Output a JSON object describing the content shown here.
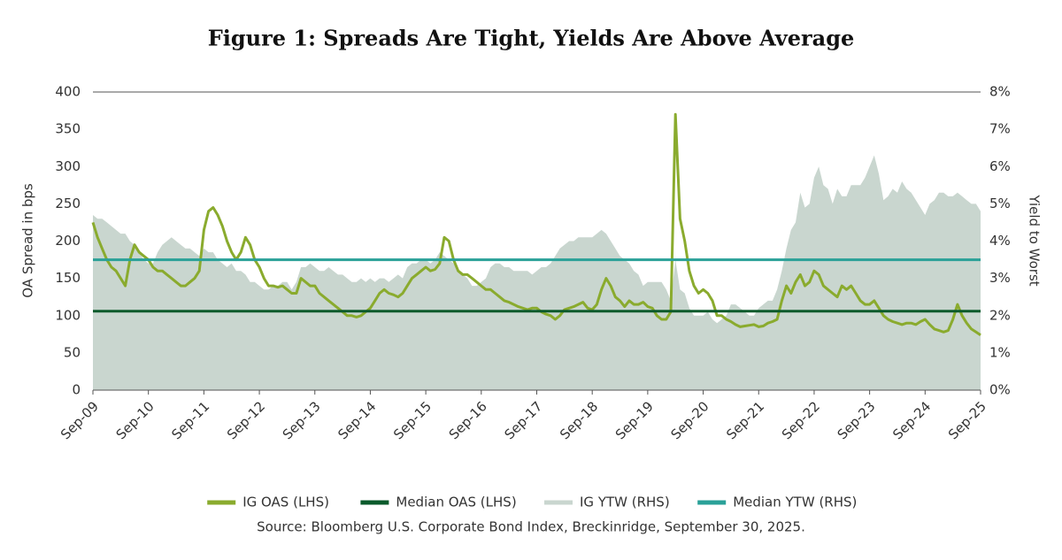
{
  "chart_data": {
    "type": "line",
    "title": "Figure 1: Spreads Are Tight, Yields Are Above Average",
    "y_label": "OA Spread in bps",
    "y2_label": "Yield to Worst",
    "source": "Source: Bloomberg U.S. Corporate Bond Index, Breckinridge, September 30, 2025.",
    "x": [
      "Sep-09",
      "Oct-09",
      "Nov-09",
      "Dec-09",
      "Jan-10",
      "Feb-10",
      "Mar-10",
      "Apr-10",
      "May-10",
      "Jun-10",
      "Jul-10",
      "Aug-10",
      "Sep-10",
      "Oct-10",
      "Nov-10",
      "Dec-10",
      "Jan-11",
      "Feb-11",
      "Mar-11",
      "Apr-11",
      "May-11",
      "Jun-11",
      "Jul-11",
      "Aug-11",
      "Sep-11",
      "Oct-11",
      "Nov-11",
      "Dec-11",
      "Jan-12",
      "Feb-12",
      "Mar-12",
      "Apr-12",
      "May-12",
      "Jun-12",
      "Jul-12",
      "Aug-12",
      "Sep-12",
      "Oct-12",
      "Nov-12",
      "Dec-12",
      "Jan-13",
      "Feb-13",
      "Mar-13",
      "Apr-13",
      "May-13",
      "Jun-13",
      "Jul-13",
      "Aug-13",
      "Sep-13",
      "Oct-13",
      "Nov-13",
      "Dec-13",
      "Jan-14",
      "Feb-14",
      "Mar-14",
      "Apr-14",
      "May-14",
      "Jun-14",
      "Jul-14",
      "Aug-14",
      "Sep-14",
      "Oct-14",
      "Nov-14",
      "Dec-14",
      "Jan-15",
      "Feb-15",
      "Mar-15",
      "Apr-15",
      "May-15",
      "Jun-15",
      "Jul-15",
      "Aug-15",
      "Sep-15",
      "Oct-15",
      "Nov-15",
      "Dec-15",
      "Jan-16",
      "Feb-16",
      "Mar-16",
      "Apr-16",
      "May-16",
      "Jun-16",
      "Jul-16",
      "Aug-16",
      "Sep-16",
      "Oct-16",
      "Nov-16",
      "Dec-16",
      "Jan-17",
      "Feb-17",
      "Mar-17",
      "Apr-17",
      "May-17",
      "Jun-17",
      "Jul-17",
      "Aug-17",
      "Sep-17",
      "Oct-17",
      "Nov-17",
      "Dec-17",
      "Jan-18",
      "Feb-18",
      "Mar-18",
      "Apr-18",
      "May-18",
      "Jun-18",
      "Jul-18",
      "Aug-18",
      "Sep-18",
      "Oct-18",
      "Nov-18",
      "Dec-18",
      "Jan-19",
      "Feb-19",
      "Mar-19",
      "Apr-19",
      "May-19",
      "Jun-19",
      "Jul-19",
      "Aug-19",
      "Sep-19",
      "Oct-19",
      "Nov-19",
      "Dec-19",
      "Jan-20",
      "Feb-20",
      "Mar-20",
      "Apr-20",
      "May-20",
      "Jun-20",
      "Jul-20",
      "Aug-20",
      "Sep-20",
      "Oct-20",
      "Nov-20",
      "Dec-20",
      "Jan-21",
      "Feb-21",
      "Mar-21",
      "Apr-21",
      "May-21",
      "Jun-21",
      "Jul-21",
      "Aug-21",
      "Sep-21",
      "Oct-21",
      "Nov-21",
      "Dec-21",
      "Jan-22",
      "Feb-22",
      "Mar-22",
      "Apr-22",
      "May-22",
      "Jun-22",
      "Jul-22",
      "Aug-22",
      "Sep-22",
      "Oct-22",
      "Nov-22",
      "Dec-22",
      "Jan-23",
      "Feb-23",
      "Mar-23",
      "Apr-23",
      "May-23",
      "Jun-23",
      "Jul-23",
      "Aug-23",
      "Sep-23",
      "Oct-23",
      "Nov-23",
      "Dec-23",
      "Jan-24",
      "Feb-24",
      "Mar-24",
      "Apr-24",
      "May-24",
      "Jun-24",
      "Jul-24",
      "Aug-24",
      "Sep-24",
      "Oct-24",
      "Nov-24",
      "Dec-24",
      "Jan-25",
      "Feb-25",
      "Mar-25",
      "Apr-25",
      "May-25",
      "Jun-25",
      "Jul-25",
      "Aug-25",
      "Sep-25"
    ],
    "xticks": [
      "Sep-09",
      "Sep-10",
      "Sep-11",
      "Sep-12",
      "Sep-13",
      "Sep-14",
      "Sep-15",
      "Sep-16",
      "Sep-17",
      "Sep-18",
      "Sep-19",
      "Sep-20",
      "Sep-21",
      "Sep-22",
      "Sep-23",
      "Sep-24",
      "Sep-25"
    ],
    "ylim": [
      0,
      400
    ],
    "yticks": [
      0,
      50,
      100,
      150,
      200,
      250,
      300,
      350,
      400
    ],
    "y2lim": [
      0,
      8
    ],
    "y2ticks": [
      {
        "value": 0,
        "label": "0%"
      },
      {
        "value": 1,
        "label": "1%"
      },
      {
        "value": 2,
        "label": "2%"
      },
      {
        "value": 3,
        "label": "3%"
      },
      {
        "value": 4,
        "label": "4%"
      },
      {
        "value": 5,
        "label": "5%"
      },
      {
        "value": 6,
        "label": "6%"
      },
      {
        "value": 7,
        "label": "7%"
      },
      {
        "value": 8,
        "label": "8%"
      }
    ],
    "series": [
      {
        "name": "IG OAS (LHS)",
        "kind": "line",
        "axis": "y",
        "color": "#8aab2e",
        "values": [
          225,
          205,
          190,
          175,
          165,
          160,
          150,
          140,
          175,
          195,
          185,
          180,
          175,
          165,
          160,
          160,
          155,
          150,
          145,
          140,
          140,
          145,
          150,
          160,
          215,
          240,
          245,
          235,
          220,
          200,
          185,
          175,
          185,
          205,
          195,
          175,
          165,
          150,
          140,
          140,
          138,
          140,
          135,
          130,
          130,
          150,
          145,
          140,
          140,
          130,
          125,
          120,
          115,
          110,
          105,
          100,
          100,
          98,
          100,
          105,
          110,
          120,
          130,
          135,
          130,
          128,
          125,
          130,
          140,
          150,
          155,
          160,
          165,
          160,
          162,
          170,
          205,
          200,
          175,
          160,
          155,
          155,
          150,
          145,
          140,
          135,
          135,
          130,
          125,
          120,
          118,
          115,
          112,
          110,
          108,
          110,
          110,
          105,
          102,
          100,
          95,
          100,
          108,
          110,
          112,
          115,
          118,
          110,
          108,
          115,
          135,
          150,
          140,
          125,
          120,
          112,
          120,
          115,
          115,
          118,
          112,
          110,
          100,
          95,
          95,
          105,
          370,
          230,
          200,
          160,
          140,
          130,
          135,
          130,
          120,
          100,
          100,
          95,
          92,
          88,
          85,
          86,
          87,
          88,
          85,
          86,
          90,
          92,
          95,
          120,
          140,
          130,
          145,
          155,
          140,
          145,
          160,
          155,
          140,
          135,
          130,
          125,
          140,
          135,
          140,
          130,
          120,
          115,
          115,
          120,
          110,
          100,
          95,
          92,
          90,
          88,
          90,
          90,
          88,
          92,
          95,
          88,
          82,
          80,
          78,
          80,
          95,
          115,
          100,
          90,
          82,
          78,
          74
        ]
      },
      {
        "name": "Median OAS (LHS)",
        "kind": "hline",
        "axis": "y",
        "color": "#0b5a2b",
        "value": 106
      },
      {
        "name": "IG YTW (RHS)",
        "kind": "area",
        "axis": "y2",
        "color": "#c9d6cf",
        "values": [
          4.7,
          4.6,
          4.6,
          4.5,
          4.4,
          4.3,
          4.2,
          4.2,
          4.0,
          3.9,
          3.7,
          3.5,
          3.4,
          3.4,
          3.7,
          3.9,
          4.0,
          4.1,
          4.0,
          3.9,
          3.8,
          3.8,
          3.7,
          3.6,
          3.8,
          3.7,
          3.7,
          3.5,
          3.4,
          3.3,
          3.4,
          3.2,
          3.2,
          3.1,
          2.9,
          2.9,
          2.8,
          2.7,
          2.7,
          2.8,
          2.8,
          2.9,
          2.9,
          2.7,
          2.9,
          3.3,
          3.3,
          3.4,
          3.3,
          3.2,
          3.2,
          3.3,
          3.2,
          3.1,
          3.1,
          3.0,
          2.9,
          2.9,
          3.0,
          2.9,
          3.0,
          2.9,
          3.0,
          3.0,
          2.9,
          3.0,
          3.1,
          3.0,
          3.3,
          3.4,
          3.4,
          3.5,
          3.5,
          3.4,
          3.5,
          3.7,
          3.6,
          3.5,
          3.4,
          3.2,
          3.1,
          3.0,
          2.8,
          2.8,
          2.9,
          3.0,
          3.3,
          3.4,
          3.4,
          3.3,
          3.3,
          3.2,
          3.2,
          3.2,
          3.2,
          3.1,
          3.2,
          3.3,
          3.3,
          3.4,
          3.6,
          3.8,
          3.9,
          4.0,
          4.0,
          4.1,
          4.1,
          4.1,
          4.1,
          4.2,
          4.3,
          4.2,
          4.0,
          3.8,
          3.6,
          3.5,
          3.4,
          3.2,
          3.1,
          2.8,
          2.9,
          2.9,
          2.9,
          2.9,
          2.7,
          2.4,
          3.5,
          2.7,
          2.6,
          2.2,
          2.0,
          2.0,
          2.0,
          2.1,
          1.9,
          1.8,
          1.9,
          2.0,
          2.3,
          2.3,
          2.2,
          2.1,
          2.0,
          2.0,
          2.2,
          2.3,
          2.4,
          2.4,
          2.7,
          3.2,
          3.8,
          4.3,
          4.5,
          5.3,
          4.9,
          5.0,
          5.7,
          6.0,
          5.5,
          5.4,
          5.0,
          5.4,
          5.2,
          5.2,
          5.5,
          5.5,
          5.5,
          5.7,
          6.0,
          6.3,
          5.8,
          5.1,
          5.2,
          5.4,
          5.3,
          5.6,
          5.4,
          5.3,
          5.1,
          4.9,
          4.7,
          5.0,
          5.1,
          5.3,
          5.3,
          5.2,
          5.2,
          5.3,
          5.2,
          5.1,
          5.0,
          5.0,
          4.8
        ]
      },
      {
        "name": "Median YTW (RHS)",
        "kind": "hline",
        "axis": "y2",
        "color": "#2aa198",
        "value": 3.5
      }
    ]
  }
}
